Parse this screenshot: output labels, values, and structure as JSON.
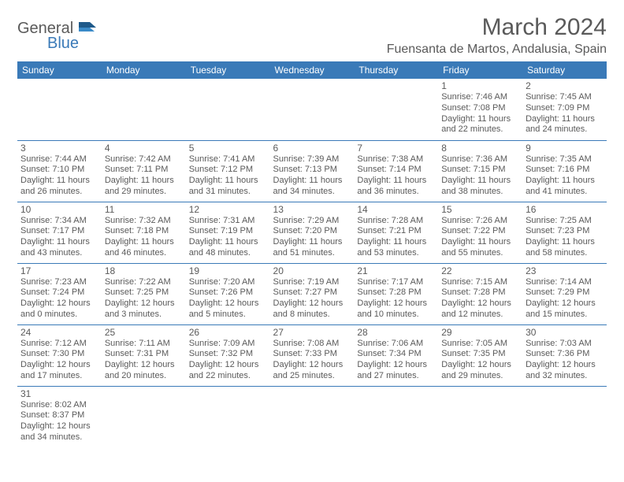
{
  "logo": {
    "text1": "General",
    "text2": "Blue"
  },
  "title": "March 2024",
  "location": "Fuensanta de Martos, Andalusia, Spain",
  "colors": {
    "header_bg": "#3a7ab8",
    "header_text": "#ffffff",
    "text": "#5a5a5a",
    "border": "#3a7ab8",
    "page_bg": "#ffffff"
  },
  "weekdays": [
    "Sunday",
    "Monday",
    "Tuesday",
    "Wednesday",
    "Thursday",
    "Friday",
    "Saturday"
  ],
  "weeks": [
    [
      null,
      null,
      null,
      null,
      null,
      {
        "d": "1",
        "sr": "Sunrise: 7:46 AM",
        "ss": "Sunset: 7:08 PM",
        "dl1": "Daylight: 11 hours",
        "dl2": "and 22 minutes."
      },
      {
        "d": "2",
        "sr": "Sunrise: 7:45 AM",
        "ss": "Sunset: 7:09 PM",
        "dl1": "Daylight: 11 hours",
        "dl2": "and 24 minutes."
      }
    ],
    [
      {
        "d": "3",
        "sr": "Sunrise: 7:44 AM",
        "ss": "Sunset: 7:10 PM",
        "dl1": "Daylight: 11 hours",
        "dl2": "and 26 minutes."
      },
      {
        "d": "4",
        "sr": "Sunrise: 7:42 AM",
        "ss": "Sunset: 7:11 PM",
        "dl1": "Daylight: 11 hours",
        "dl2": "and 29 minutes."
      },
      {
        "d": "5",
        "sr": "Sunrise: 7:41 AM",
        "ss": "Sunset: 7:12 PM",
        "dl1": "Daylight: 11 hours",
        "dl2": "and 31 minutes."
      },
      {
        "d": "6",
        "sr": "Sunrise: 7:39 AM",
        "ss": "Sunset: 7:13 PM",
        "dl1": "Daylight: 11 hours",
        "dl2": "and 34 minutes."
      },
      {
        "d": "7",
        "sr": "Sunrise: 7:38 AM",
        "ss": "Sunset: 7:14 PM",
        "dl1": "Daylight: 11 hours",
        "dl2": "and 36 minutes."
      },
      {
        "d": "8",
        "sr": "Sunrise: 7:36 AM",
        "ss": "Sunset: 7:15 PM",
        "dl1": "Daylight: 11 hours",
        "dl2": "and 38 minutes."
      },
      {
        "d": "9",
        "sr": "Sunrise: 7:35 AM",
        "ss": "Sunset: 7:16 PM",
        "dl1": "Daylight: 11 hours",
        "dl2": "and 41 minutes."
      }
    ],
    [
      {
        "d": "10",
        "sr": "Sunrise: 7:34 AM",
        "ss": "Sunset: 7:17 PM",
        "dl1": "Daylight: 11 hours",
        "dl2": "and 43 minutes."
      },
      {
        "d": "11",
        "sr": "Sunrise: 7:32 AM",
        "ss": "Sunset: 7:18 PM",
        "dl1": "Daylight: 11 hours",
        "dl2": "and 46 minutes."
      },
      {
        "d": "12",
        "sr": "Sunrise: 7:31 AM",
        "ss": "Sunset: 7:19 PM",
        "dl1": "Daylight: 11 hours",
        "dl2": "and 48 minutes."
      },
      {
        "d": "13",
        "sr": "Sunrise: 7:29 AM",
        "ss": "Sunset: 7:20 PM",
        "dl1": "Daylight: 11 hours",
        "dl2": "and 51 minutes."
      },
      {
        "d": "14",
        "sr": "Sunrise: 7:28 AM",
        "ss": "Sunset: 7:21 PM",
        "dl1": "Daylight: 11 hours",
        "dl2": "and 53 minutes."
      },
      {
        "d": "15",
        "sr": "Sunrise: 7:26 AM",
        "ss": "Sunset: 7:22 PM",
        "dl1": "Daylight: 11 hours",
        "dl2": "and 55 minutes."
      },
      {
        "d": "16",
        "sr": "Sunrise: 7:25 AM",
        "ss": "Sunset: 7:23 PM",
        "dl1": "Daylight: 11 hours",
        "dl2": "and 58 minutes."
      }
    ],
    [
      {
        "d": "17",
        "sr": "Sunrise: 7:23 AM",
        "ss": "Sunset: 7:24 PM",
        "dl1": "Daylight: 12 hours",
        "dl2": "and 0 minutes."
      },
      {
        "d": "18",
        "sr": "Sunrise: 7:22 AM",
        "ss": "Sunset: 7:25 PM",
        "dl1": "Daylight: 12 hours",
        "dl2": "and 3 minutes."
      },
      {
        "d": "19",
        "sr": "Sunrise: 7:20 AM",
        "ss": "Sunset: 7:26 PM",
        "dl1": "Daylight: 12 hours",
        "dl2": "and 5 minutes."
      },
      {
        "d": "20",
        "sr": "Sunrise: 7:19 AM",
        "ss": "Sunset: 7:27 PM",
        "dl1": "Daylight: 12 hours",
        "dl2": "and 8 minutes."
      },
      {
        "d": "21",
        "sr": "Sunrise: 7:17 AM",
        "ss": "Sunset: 7:28 PM",
        "dl1": "Daylight: 12 hours",
        "dl2": "and 10 minutes."
      },
      {
        "d": "22",
        "sr": "Sunrise: 7:15 AM",
        "ss": "Sunset: 7:28 PM",
        "dl1": "Daylight: 12 hours",
        "dl2": "and 12 minutes."
      },
      {
        "d": "23",
        "sr": "Sunrise: 7:14 AM",
        "ss": "Sunset: 7:29 PM",
        "dl1": "Daylight: 12 hours",
        "dl2": "and 15 minutes."
      }
    ],
    [
      {
        "d": "24",
        "sr": "Sunrise: 7:12 AM",
        "ss": "Sunset: 7:30 PM",
        "dl1": "Daylight: 12 hours",
        "dl2": "and 17 minutes."
      },
      {
        "d": "25",
        "sr": "Sunrise: 7:11 AM",
        "ss": "Sunset: 7:31 PM",
        "dl1": "Daylight: 12 hours",
        "dl2": "and 20 minutes."
      },
      {
        "d": "26",
        "sr": "Sunrise: 7:09 AM",
        "ss": "Sunset: 7:32 PM",
        "dl1": "Daylight: 12 hours",
        "dl2": "and 22 minutes."
      },
      {
        "d": "27",
        "sr": "Sunrise: 7:08 AM",
        "ss": "Sunset: 7:33 PM",
        "dl1": "Daylight: 12 hours",
        "dl2": "and 25 minutes."
      },
      {
        "d": "28",
        "sr": "Sunrise: 7:06 AM",
        "ss": "Sunset: 7:34 PM",
        "dl1": "Daylight: 12 hours",
        "dl2": "and 27 minutes."
      },
      {
        "d": "29",
        "sr": "Sunrise: 7:05 AM",
        "ss": "Sunset: 7:35 PM",
        "dl1": "Daylight: 12 hours",
        "dl2": "and 29 minutes."
      },
      {
        "d": "30",
        "sr": "Sunrise: 7:03 AM",
        "ss": "Sunset: 7:36 PM",
        "dl1": "Daylight: 12 hours",
        "dl2": "and 32 minutes."
      }
    ],
    [
      {
        "d": "31",
        "sr": "Sunrise: 8:02 AM",
        "ss": "Sunset: 8:37 PM",
        "dl1": "Daylight: 12 hours",
        "dl2": "and 34 minutes."
      },
      null,
      null,
      null,
      null,
      null,
      null
    ]
  ]
}
